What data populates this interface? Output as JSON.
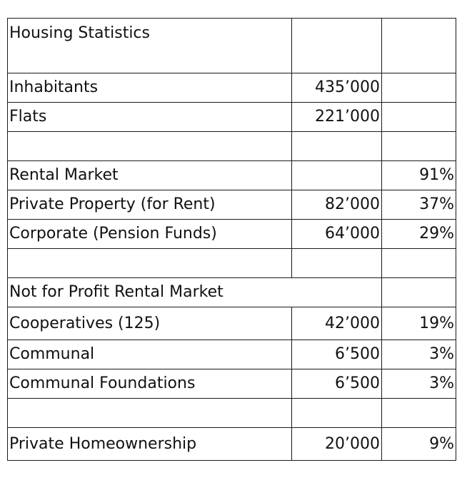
{
  "table": {
    "title": "Housing Statistics",
    "rows": [
      {
        "label": "Inhabitants",
        "value": "435’000",
        "percent": ""
      },
      {
        "label": "Flats",
        "value": "221’000",
        "percent": ""
      },
      {
        "label": "",
        "value": "",
        "percent": ""
      },
      {
        "label": "Rental Market",
        "value": "",
        "percent": "91%"
      },
      {
        "label": "Private Property (for Rent)",
        "value": "82’000",
        "percent": "37%"
      },
      {
        "label": "Corporate (Pension Funds)",
        "value": "64’000",
        "percent": "29%"
      },
      {
        "label": "",
        "value": "",
        "percent": ""
      },
      {
        "label": "Not for Profit Rental Market",
        "value": "",
        "percent": ""
      },
      {
        "label": "Cooperatives (125)",
        "value": "42’000",
        "percent": "19%"
      },
      {
        "label": "Communal",
        "value": "6’500",
        "percent": "3%"
      },
      {
        "label": "Communal Foundations",
        "value": "6’500",
        "percent": "3%"
      },
      {
        "label": "",
        "value": "",
        "percent": ""
      },
      {
        "label": "Private Homeownership",
        "value": "20’000",
        "percent": "9%"
      }
    ]
  }
}
